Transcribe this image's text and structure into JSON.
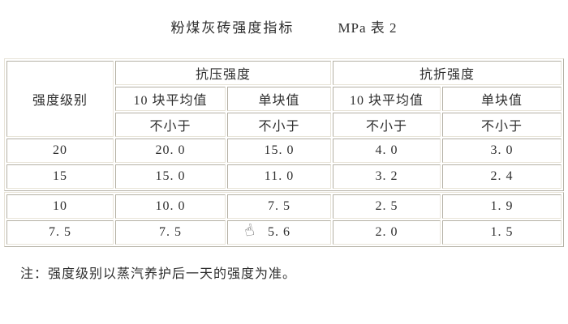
{
  "title": {
    "main": "粉煤灰砖强度指标",
    "unit": "MPa 表 2"
  },
  "table": {
    "header": {
      "grade": "强度级别",
      "compressive": "抗压强度",
      "flexural": "抗折强度",
      "avg_of_10": "10 块平均值",
      "single_value": "单块值",
      "not_less_than": "不小于"
    },
    "rows": [
      {
        "grade": "20",
        "comp_avg": "20. 0",
        "comp_single": "15. 0",
        "flex_avg": "4. 0",
        "flex_single": "3. 0"
      },
      {
        "grade": "15",
        "comp_avg": "15. 0",
        "comp_single": "11. 0",
        "flex_avg": "3. 2",
        "flex_single": "2. 4"
      },
      {
        "grade": "10",
        "comp_avg": "10. 0",
        "comp_single": "7. 5",
        "flex_avg": "2. 5",
        "flex_single": "1. 9"
      },
      {
        "grade": "7. 5",
        "comp_avg": "7. 5",
        "comp_single": "5. 6",
        "flex_avg": "2. 0",
        "flex_single": "1. 5"
      }
    ]
  },
  "note": "注：强度级别以蒸汽养护后一天的强度为准。",
  "icons": {
    "hand_cursor": "☝"
  },
  "colors": {
    "background": "#ffffff",
    "border_light": "#e8e4d8",
    "border_dark": "#b4b0a4",
    "text": "#2e2e2e"
  }
}
